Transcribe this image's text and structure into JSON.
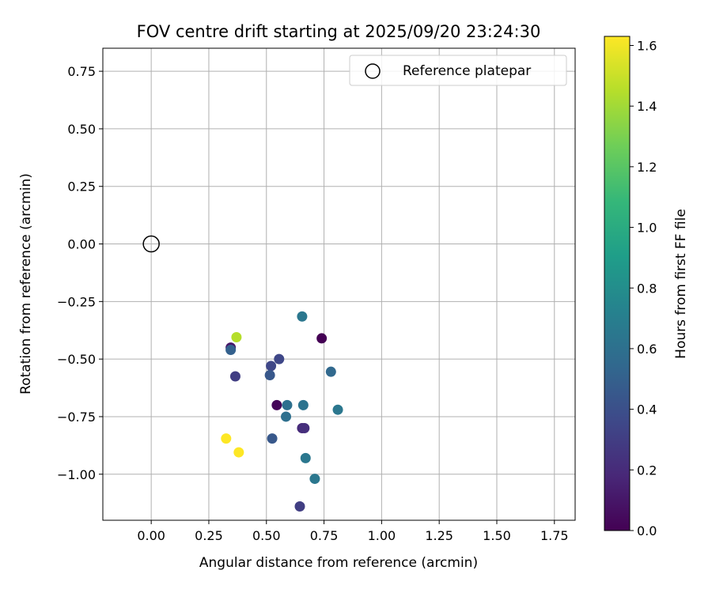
{
  "chart_data": {
    "type": "scatter",
    "title": "FOV centre drift starting at 2025/09/20 23:24:30",
    "xlabel": "Angular distance from reference (arcmin)",
    "ylabel": "Rotation from reference (arcmin)",
    "xlim": [
      -0.21,
      1.84
    ],
    "ylim": [
      -1.2,
      0.85
    ],
    "xticks": [
      0.0,
      0.25,
      0.5,
      0.75,
      1.0,
      1.25,
      1.5,
      1.75
    ],
    "xtick_labels": [
      "0.00",
      "0.25",
      "0.50",
      "0.75",
      "1.00",
      "1.25",
      "1.50",
      "1.75"
    ],
    "yticks": [
      0.75,
      0.5,
      0.25,
      0.0,
      -0.25,
      -0.5,
      -0.75,
      -1.0
    ],
    "ytick_labels": [
      "0.75",
      "0.50",
      "0.25",
      "0.00",
      "−0.25",
      "−0.50",
      "−0.75",
      "−1.00"
    ],
    "grid": true,
    "legend": {
      "position": "upper-right",
      "entries": [
        "Reference platepar"
      ]
    },
    "reference_point": {
      "x": 0.0,
      "y": 0.0
    },
    "colorbar": {
      "label": "Hours from first FF file",
      "range": [
        0.0,
        1.63
      ],
      "ticks": [
        0.0,
        0.2,
        0.4,
        0.6,
        0.8,
        1.0,
        1.2,
        1.4,
        1.6
      ],
      "tick_labels": [
        "0.0",
        "0.2",
        "0.4",
        "0.6",
        "0.8",
        "1.0",
        "1.2",
        "1.4",
        "1.6"
      ],
      "colormap": [
        "#440154",
        "#482878",
        "#3e4989",
        "#31688e",
        "#26828e",
        "#1f9e89",
        "#35b779",
        "#6ece58",
        "#b5de2b",
        "#fde725"
      ]
    },
    "points": [
      {
        "x": 0.74,
        "y": -0.41,
        "t": 0.0
      },
      {
        "x": 0.545,
        "y": -0.7,
        "t": 0.02
      },
      {
        "x": 0.345,
        "y": -0.45,
        "t": 0.1
      },
      {
        "x": 0.655,
        "y": -0.8,
        "t": 0.2
      },
      {
        "x": 0.665,
        "y": -0.8,
        "t": 0.22
      },
      {
        "x": 0.645,
        "y": -1.14,
        "t": 0.3
      },
      {
        "x": 0.365,
        "y": -0.575,
        "t": 0.3
      },
      {
        "x": 0.52,
        "y": -0.53,
        "t": 0.35
      },
      {
        "x": 0.555,
        "y": -0.5,
        "t": 0.35
      },
      {
        "x": 0.515,
        "y": -0.57,
        "t": 0.45
      },
      {
        "x": 0.525,
        "y": -0.845,
        "t": 0.45
      },
      {
        "x": 0.345,
        "y": -0.46,
        "t": 0.5
      },
      {
        "x": 0.78,
        "y": -0.555,
        "t": 0.55
      },
      {
        "x": 0.59,
        "y": -0.7,
        "t": 0.6
      },
      {
        "x": 0.585,
        "y": -0.75,
        "t": 0.6
      },
      {
        "x": 0.66,
        "y": -0.7,
        "t": 0.62
      },
      {
        "x": 0.655,
        "y": -0.315,
        "t": 0.65
      },
      {
        "x": 0.81,
        "y": -0.72,
        "t": 0.65
      },
      {
        "x": 0.67,
        "y": -0.93,
        "t": 0.65
      },
      {
        "x": 0.71,
        "y": -1.02,
        "t": 0.65
      },
      {
        "x": 0.37,
        "y": -0.405,
        "t": 1.45
      },
      {
        "x": 0.325,
        "y": -0.845,
        "t": 1.63
      },
      {
        "x": 0.38,
        "y": -0.905,
        "t": 1.63
      }
    ]
  }
}
